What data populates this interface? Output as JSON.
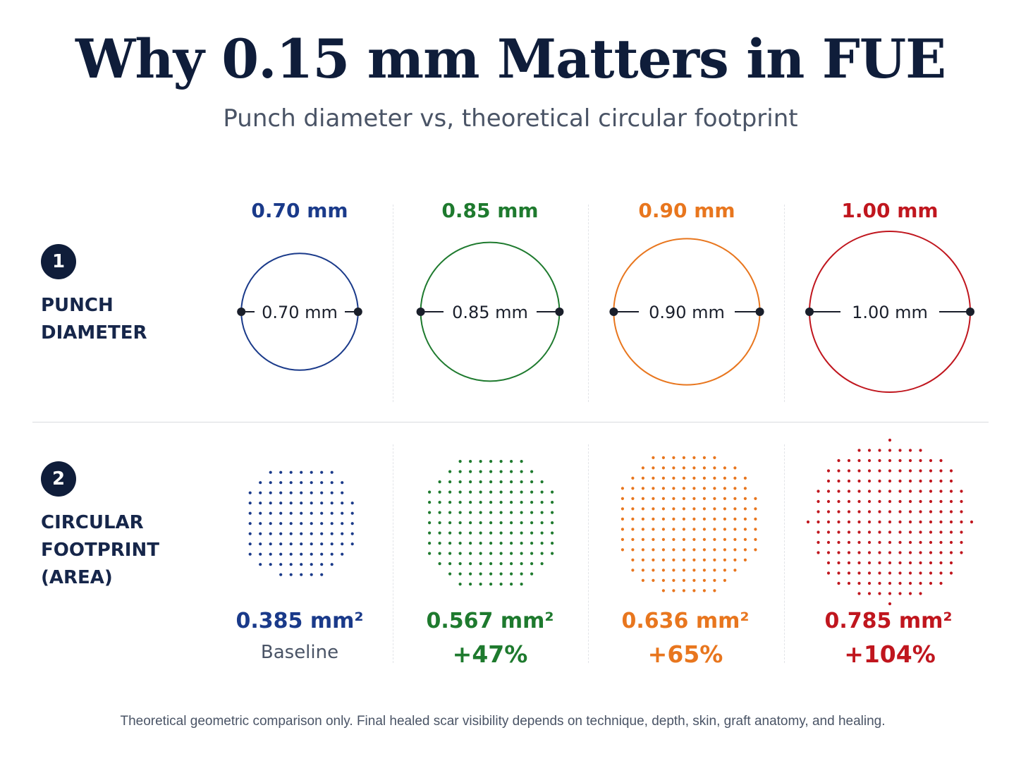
{
  "title": "Why 0.15 mm Matters in FUE",
  "subtitle": "Punch diameter vs, theoretical circular footprint",
  "rows": [
    {
      "badge": "1",
      "label_lines": [
        "PUNCH",
        "DIAMETER"
      ]
    },
    {
      "badge": "2",
      "label_lines": [
        "CIRCULAR",
        "FOOTPRINT",
        "(AREA)"
      ]
    }
  ],
  "columns": [
    {
      "diameter_label": "0.70 mm",
      "diameter_mm": 0.7,
      "inner_label": "0.70 mm",
      "area": "0.385 mm²",
      "area_mm2": 0.385,
      "note": "Baseline",
      "note_type": "baseline",
      "color": "#1a3a8a"
    },
    {
      "diameter_label": "0.85 mm",
      "diameter_mm": 0.85,
      "inner_label": "0.85 mm",
      "area": "0.567 mm²",
      "area_mm2": 0.567,
      "note": "+47%",
      "note_type": "pct",
      "color": "#1e7a2e"
    },
    {
      "diameter_label": "0.90 mm",
      "diameter_mm": 0.9,
      "inner_label": "0.90 mm",
      "area": "0.636 mm²",
      "area_mm2": 0.636,
      "note": "+65%",
      "note_type": "pct",
      "color": "#e8761e"
    },
    {
      "diameter_label": "1.00 mm",
      "diameter_mm": 1.0,
      "inner_label": "1.00 mm",
      "area": "0.785 mm²",
      "area_mm2": 0.785,
      "note": "+104%",
      "note_type": "pct",
      "color": "#c0161e"
    }
  ],
  "footnote": "Theoretical geometric comparison only. Final healed scar visibility depends on technique, depth, skin, graft anatomy, and healing."
}
